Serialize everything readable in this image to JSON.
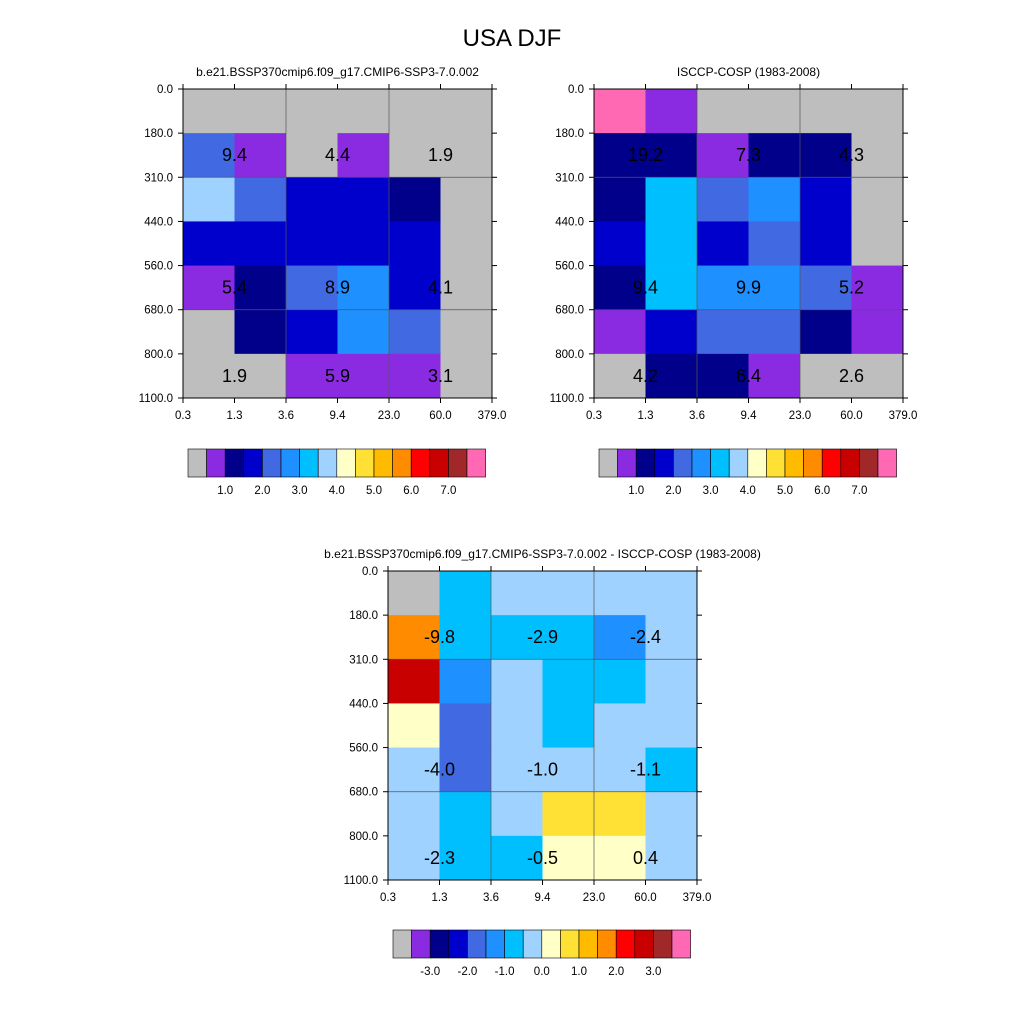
{
  "title": "USA DJF",
  "palette": [
    "#bebebe",
    "#8a2be2",
    "#00008b",
    "#0000cd",
    "#4169e1",
    "#1e90ff",
    "#00bfff",
    "#a0d2ff",
    "#ffffc8",
    "#ffe135",
    "#ffbb00",
    "#ff8c00",
    "#ff0000",
    "#c80000",
    "#a02828",
    "#ff69b4"
  ],
  "y_ticks": [
    "0.0",
    "180.0",
    "310.0",
    "440.0",
    "560.0",
    "680.0",
    "800.0",
    "1100.0"
  ],
  "x_ticks": [
    "0.3",
    "1.3",
    "3.6",
    "9.4",
    "23.0",
    "60.0",
    "379.0"
  ],
  "chart_data": [
    {
      "type": "heatmap",
      "title": "b.e21.BSSP370cmip6.f09_g17.CMIP6-SSP3-7.0.002",
      "cells": [
        [
          0,
          0,
          0,
          0,
          0,
          0
        ],
        [
          4,
          1,
          0,
          1,
          0,
          0
        ],
        [
          7,
          4,
          3,
          3,
          2,
          0
        ],
        [
          3,
          3,
          3,
          3,
          3,
          0
        ],
        [
          1,
          2,
          4,
          5,
          3,
          0
        ],
        [
          0,
          2,
          3,
          5,
          4,
          0
        ],
        [
          0,
          0,
          1,
          1,
          1,
          0
        ]
      ],
      "labels": [
        {
          "row": 1,
          "col": 1,
          "text": "9.4"
        },
        {
          "row": 1,
          "col": 3,
          "text": "4.4"
        },
        {
          "row": 1,
          "col": 5,
          "text": "1.9"
        },
        {
          "row": 4,
          "col": 1,
          "text": "5.4"
        },
        {
          "row": 4,
          "col": 3,
          "text": "8.9"
        },
        {
          "row": 4,
          "col": 5,
          "text": "4.1"
        },
        {
          "row": 6,
          "col": 1,
          "text": "1.9"
        },
        {
          "row": 6,
          "col": 3,
          "text": "5.9"
        },
        {
          "row": 6,
          "col": 5,
          "text": "3.1"
        }
      ],
      "colorbar_labels": [
        "1.0",
        "2.0",
        "3.0",
        "4.0",
        "5.0",
        "6.0",
        "7.0"
      ]
    },
    {
      "type": "heatmap",
      "title": "ISCCP-COSP (1983-2008)",
      "cells": [
        [
          15,
          1,
          0,
          0,
          0,
          0
        ],
        [
          2,
          2,
          1,
          2,
          2,
          0
        ],
        [
          2,
          6,
          4,
          5,
          3,
          0
        ],
        [
          3,
          6,
          3,
          4,
          3,
          0
        ],
        [
          2,
          6,
          5,
          5,
          4,
          1
        ],
        [
          1,
          3,
          4,
          4,
          2,
          1
        ],
        [
          0,
          2,
          2,
          1,
          0,
          0
        ]
      ],
      "labels": [
        {
          "row": 1,
          "col": 1,
          "text": "19.2"
        },
        {
          "row": 1,
          "col": 3,
          "text": "7.3"
        },
        {
          "row": 1,
          "col": 5,
          "text": "4.3"
        },
        {
          "row": 4,
          "col": 1,
          "text": "9.4"
        },
        {
          "row": 4,
          "col": 3,
          "text": "9.9"
        },
        {
          "row": 4,
          "col": 5,
          "text": "5.2"
        },
        {
          "row": 6,
          "col": 1,
          "text": "4.2"
        },
        {
          "row": 6,
          "col": 3,
          "text": "6.4"
        },
        {
          "row": 6,
          "col": 5,
          "text": "2.6"
        }
      ],
      "colorbar_labels": [
        "1.0",
        "2.0",
        "3.0",
        "4.0",
        "5.0",
        "6.0",
        "7.0"
      ]
    },
    {
      "type": "heatmap",
      "title": "b.e21.BSSP370cmip6.f09_g17.CMIP6-SSP3-7.0.002 - ISCCP-COSP (1983-2008)",
      "cells": [
        [
          0,
          6,
          7,
          7,
          7,
          7
        ],
        [
          11,
          6,
          6,
          6,
          5,
          7
        ],
        [
          13,
          5,
          7,
          6,
          6,
          7
        ],
        [
          8,
          4,
          7,
          6,
          7,
          7
        ],
        [
          7,
          4,
          7,
          7,
          7,
          6
        ],
        [
          7,
          6,
          7,
          9,
          9,
          7
        ],
        [
          7,
          6,
          6,
          8,
          8,
          7
        ]
      ],
      "labels": [
        {
          "row": 1,
          "col": 1,
          "text": "-9.8"
        },
        {
          "row": 1,
          "col": 3,
          "text": "-2.9"
        },
        {
          "row": 1,
          "col": 5,
          "text": "-2.4"
        },
        {
          "row": 4,
          "col": 1,
          "text": "-4.0"
        },
        {
          "row": 4,
          "col": 3,
          "text": "-1.0"
        },
        {
          "row": 4,
          "col": 5,
          "text": "-1.1"
        },
        {
          "row": 6,
          "col": 1,
          "text": "-2.3"
        },
        {
          "row": 6,
          "col": 3,
          "text": "-0.5"
        },
        {
          "row": 6,
          "col": 5,
          "text": "0.4"
        }
      ],
      "colorbar_labels": [
        "-3.0",
        "-2.0",
        "-1.0",
        "0.0",
        "1.0",
        "2.0",
        "3.0"
      ]
    }
  ]
}
